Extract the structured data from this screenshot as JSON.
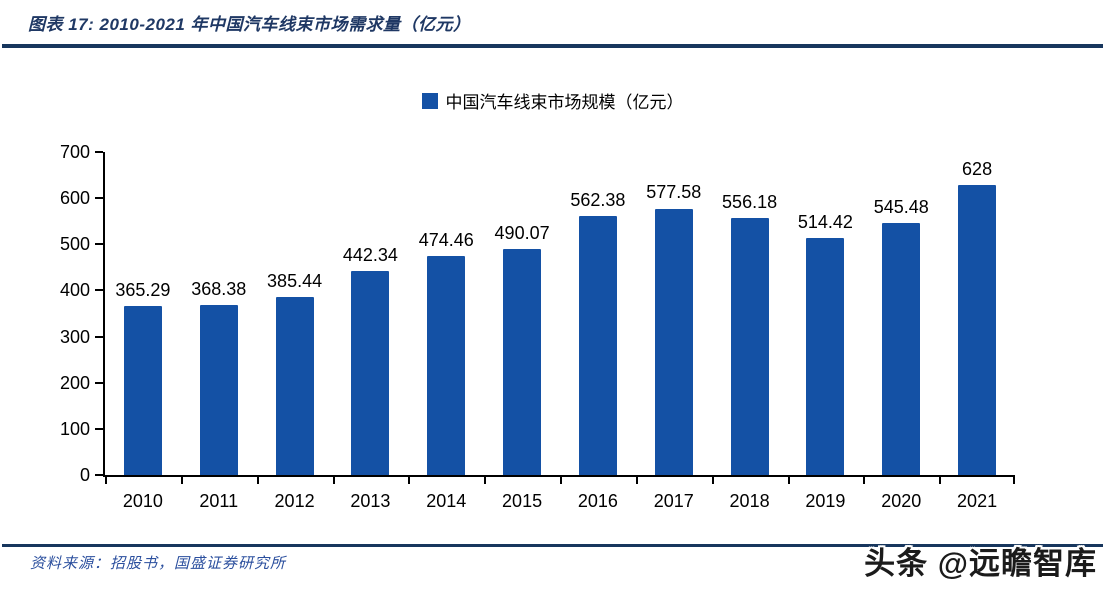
{
  "header": {
    "title": "图表 17:  2010-2021 年中国汽车线束市场需求量（亿元）"
  },
  "legend": {
    "label": "中国汽车线束市场规模（亿元）",
    "swatch_color": "#1451a5"
  },
  "chart_data": {
    "type": "bar",
    "title": "2010-2021 年中国汽车线束市场需求量（亿元）",
    "categories": [
      "2010",
      "2011",
      "2012",
      "2013",
      "2014",
      "2015",
      "2016",
      "2017",
      "2018",
      "2019",
      "2020",
      "2021"
    ],
    "values": [
      365.29,
      368.38,
      385.44,
      442.34,
      474.46,
      490.07,
      562.38,
      577.58,
      556.18,
      514.42,
      545.48,
      628
    ],
    "value_labels": [
      "365.29",
      "368.38",
      "385.44",
      "442.34",
      "474.46",
      "490.07",
      "562.38",
      "577.58",
      "556.18",
      "514.42",
      "545.48",
      "628"
    ],
    "series_name": "中国汽车线束市场规模（亿元）",
    "legend_position": "top",
    "xlabel": "",
    "ylabel": "",
    "ylim": [
      0,
      700
    ],
    "yticks": [
      0,
      100,
      200,
      300,
      400,
      500,
      600,
      700
    ],
    "grid": false,
    "bar_color": "#1451a5"
  },
  "footer": {
    "source": "资料来源：招股书，国盛证券研究所",
    "watermark": "头条 @远瞻智库"
  },
  "colors": {
    "bar": "#1451a5",
    "title_text": "#1f3864",
    "rule": "#17365d",
    "source_text": "#2b4f9e",
    "axis": "#000000",
    "label_text": "#000000"
  }
}
